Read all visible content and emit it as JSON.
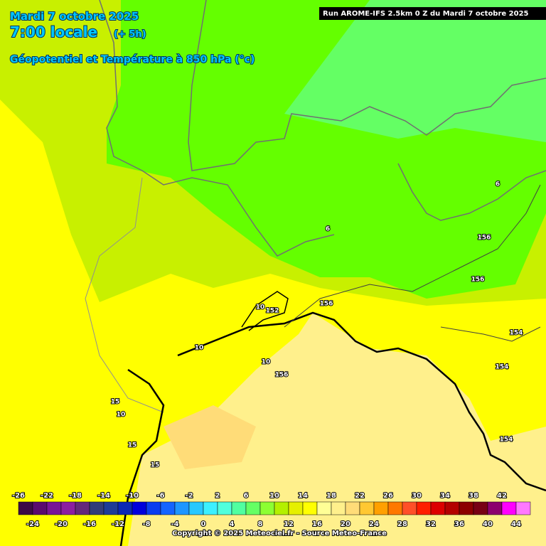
{
  "header": {
    "date": "Mardi 7 octobre 2025",
    "time": "7:00 locale",
    "offset": "(+ 5h)",
    "title": "Géopotentiel et Température à 850 hPa (°c)",
    "run": "Run AROME-IFS 2.5km 0 Z du Mardi 7 octobre 2025"
  },
  "map": {
    "contour_labels": [
      "6",
      "6",
      "156",
      "156",
      "156",
      "10",
      "152",
      "154",
      "10",
      "10",
      "156",
      "154",
      "154",
      "15",
      "10",
      "15",
      "15"
    ]
  },
  "legend": {
    "top_labels": [
      "-26",
      "-22",
      "-18",
      "-14",
      "-10",
      "-6",
      "-2",
      "2",
      "6",
      "10",
      "14",
      "18",
      "22",
      "26",
      "30",
      "34",
      "38",
      "42"
    ],
    "bottom_labels": [
      "-24",
      "-20",
      "-16",
      "-12",
      "-8",
      "-4",
      "0",
      "4",
      "8",
      "12",
      "16",
      "20",
      "24",
      "28",
      "32",
      "36",
      "40",
      "44"
    ],
    "colors": [
      "#3c0a46",
      "#5a0a6e",
      "#781496",
      "#8c1ea0",
      "#64287a",
      "#323c78",
      "#1e3c96",
      "#0a28b4",
      "#0000dc",
      "#0a3cf0",
      "#1464ff",
      "#1e96ff",
      "#28c8ff",
      "#3cf0ff",
      "#50ffdc",
      "#50ffa0",
      "#64ff64",
      "#8cff32",
      "#b4f000",
      "#e6f000",
      "#ffff00",
      "#ffff96",
      "#fff08c",
      "#ffdc78",
      "#ffc832",
      "#ffa000",
      "#ff7800",
      "#ff5028",
      "#ff1e00",
      "#dc0000",
      "#b40000",
      "#8c0000",
      "#780014",
      "#8c006e",
      "#ff00ff",
      "#ff78ff"
    ]
  },
  "footer": {
    "copyright": "Copyright © 2025 Meteociel.fr - Source Meteo-France"
  }
}
